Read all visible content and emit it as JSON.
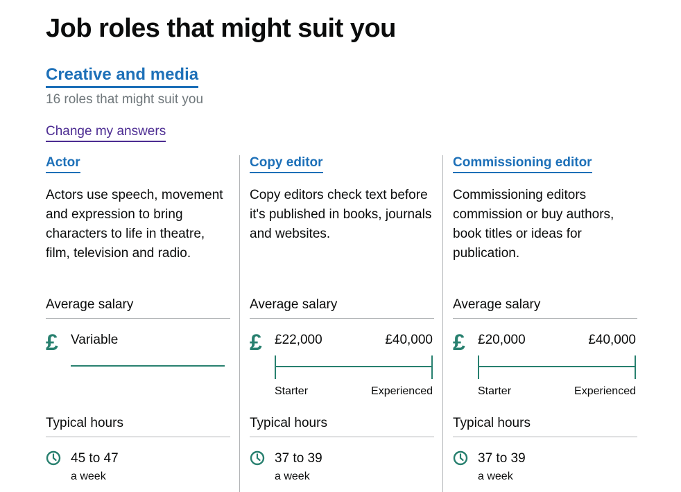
{
  "page": {
    "title": "Job roles that might suit you",
    "category_link": "Creative and media",
    "roles_count": "16 roles that might suit you",
    "change_answers": "Change my answers"
  },
  "labels": {
    "average_salary": "Average salary",
    "typical_hours": "Typical hours",
    "pound_symbol": "£",
    "starter": "Starter",
    "experienced": "Experienced",
    "a_week": "a week"
  },
  "roles": [
    {
      "title": "Actor",
      "description": "Actors use speech, movement and expression to bring characters to life in theatre, film, television and radio.",
      "salary_text": "Variable",
      "hours": "45 to 47"
    },
    {
      "title": "Copy editor",
      "description": "Copy editors check text before it's published in books, journals and websites.",
      "salary_min": "£22,000",
      "salary_max": "£40,000",
      "hours": "37 to 39"
    },
    {
      "title": "Commissioning editor",
      "description": "Commissioning editors commission or buy authors, book titles or ideas for publication.",
      "salary_min": "£20,000",
      "salary_max": "£40,000",
      "hours": "37 to 39"
    }
  ],
  "colors": {
    "link": "#1d70b8",
    "visited_link": "#4c2c92",
    "accent_green": "#28806f",
    "secondary_text": "#6f777b"
  }
}
